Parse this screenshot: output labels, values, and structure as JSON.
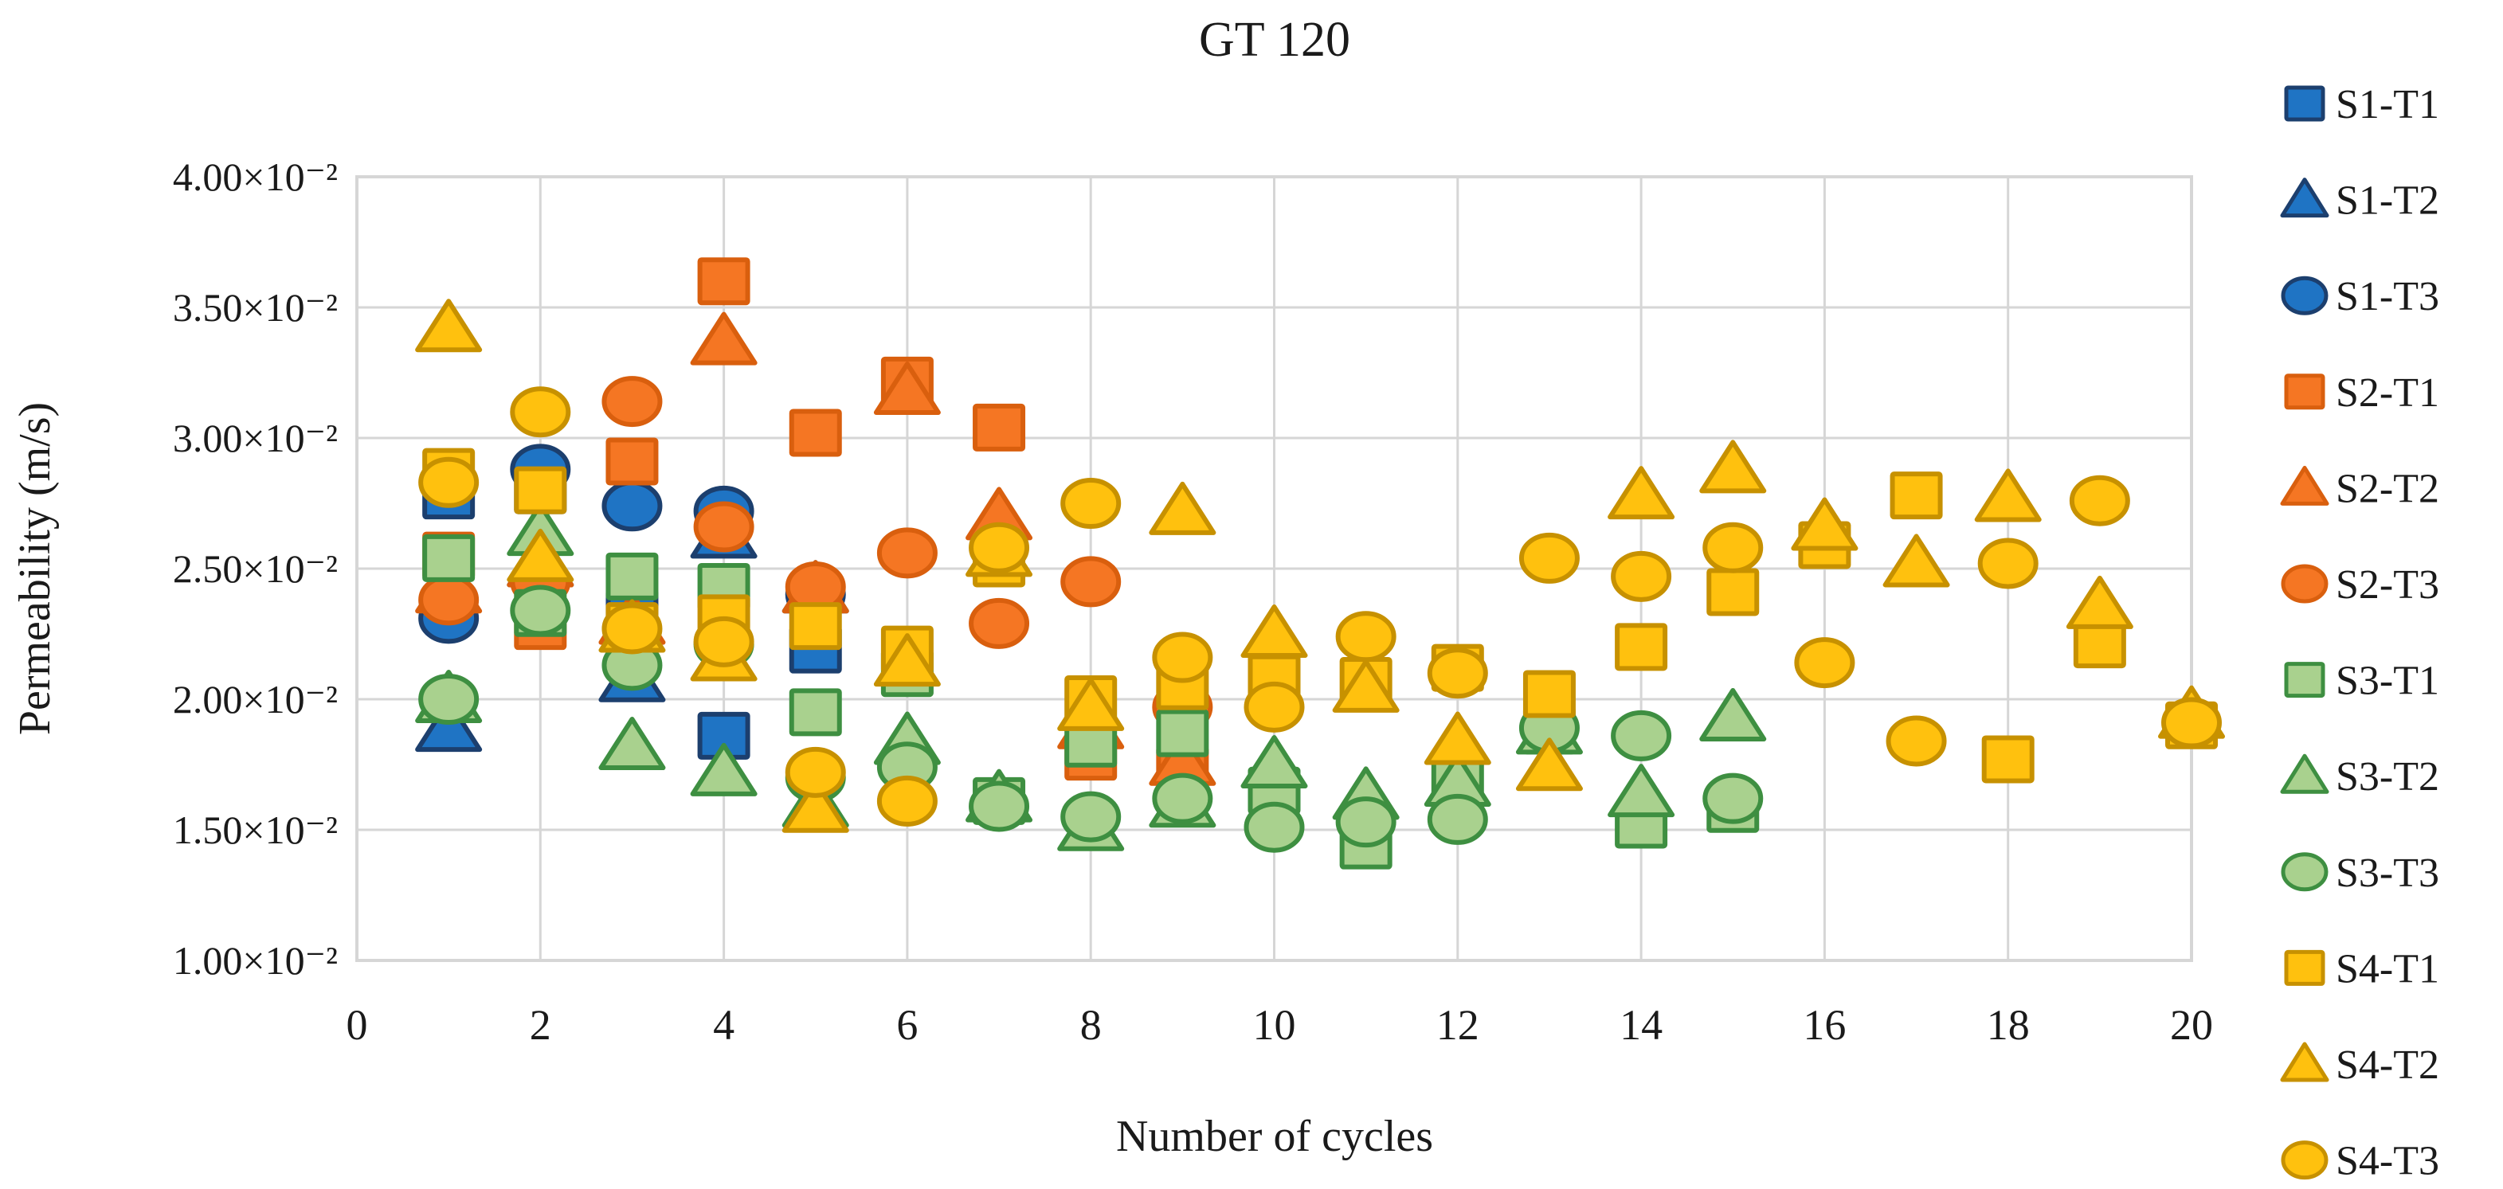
{
  "chart_data": {
    "type": "scatter",
    "title": "GT 120",
    "xlabel": "Number of cycles",
    "ylabel": "Permeability (m/s)",
    "x_ticks": [
      0,
      2,
      4,
      6,
      8,
      10,
      12,
      14,
      16,
      18,
      20
    ],
    "xlim": [
      0,
      20
    ],
    "y_scale": "1e-2",
    "y_ticks": [
      {
        "value": 1.0,
        "label": "1.00×10⁻²"
      },
      {
        "value": 1.5,
        "label": "1.50×10⁻²"
      },
      {
        "value": 2.0,
        "label": "2.00×10⁻²"
      },
      {
        "value": 2.5,
        "label": "2.50×10⁻²"
      },
      {
        "value": 3.0,
        "label": "3.00×10⁻²"
      },
      {
        "value": 3.5,
        "label": "3.50×10⁻²"
      },
      {
        "value": 4.0,
        "label": "4.00×10⁻²"
      }
    ],
    "ylim": [
      1.0,
      4.0
    ],
    "grid": true,
    "legend_position": "right",
    "colors": {
      "blue_fill": "#1F74C4",
      "blue_stroke": "#1C3F6E",
      "orange_fill": "#F57623",
      "orange_stroke": "#D95F0E",
      "green_fill": "#A9D18E",
      "green_stroke": "#3E8F41",
      "gold_fill": "#FFC10E",
      "gold_stroke": "#C79100",
      "gridline": "#D6D6D6"
    },
    "series": [
      {
        "name": "S1-T1",
        "marker": "square",
        "fill": "#1F74C4",
        "stroke": "#1C3F6E",
        "x": [
          1,
          2,
          3,
          4,
          5
        ],
        "y": [
          2.78,
          2.8,
          2.33,
          1.86,
          2.19
        ]
      },
      {
        "name": "S1-T2",
        "marker": "triangle",
        "fill": "#1F74C4",
        "stroke": "#1C3F6E",
        "x": [
          1,
          2,
          3,
          4,
          5
        ],
        "y": [
          1.89,
          2.52,
          2.08,
          2.63,
          2.42
        ]
      },
      {
        "name": "S1-T3",
        "marker": "circle",
        "fill": "#1F74C4",
        "stroke": "#1C3F6E",
        "x": [
          1,
          2,
          3,
          4,
          5
        ],
        "y": [
          2.31,
          2.88,
          2.74,
          2.72,
          2.4
        ]
      },
      {
        "name": "S2-T1",
        "marker": "square",
        "fill": "#F57623",
        "stroke": "#D95F0E",
        "x": [
          1,
          2,
          3,
          4,
          5,
          6,
          7,
          8,
          9
        ],
        "y": [
          2.55,
          2.28,
          2.91,
          3.6,
          3.02,
          3.22,
          3.04,
          1.78,
          1.73
        ]
      },
      {
        "name": "S2-T2",
        "marker": "triangle",
        "fill": "#F57623",
        "stroke": "#D95F0E",
        "x": [
          1,
          2,
          3,
          4,
          5,
          6,
          7,
          8,
          9
        ],
        "y": [
          2.42,
          2.52,
          2.3,
          3.37,
          2.42,
          3.18,
          2.7,
          1.9,
          1.76
        ]
      },
      {
        "name": "S2-T3",
        "marker": "circle",
        "fill": "#F57623",
        "stroke": "#D95F0E",
        "x": [
          1,
          2,
          3,
          4,
          5,
          6,
          7,
          8,
          9
        ],
        "y": [
          2.38,
          2.45,
          3.14,
          2.66,
          2.43,
          2.56,
          2.29,
          2.45,
          1.97
        ]
      },
      {
        "name": "S3-T1",
        "marker": "square",
        "fill": "#A9D18E",
        "stroke": "#3E8F41",
        "x": [
          1,
          2,
          3,
          4,
          5,
          6,
          7,
          8,
          9,
          10,
          11,
          12,
          13,
          14,
          15
        ],
        "y": [
          2.54,
          2.33,
          2.47,
          2.43,
          1.95,
          2.1,
          1.61,
          1.83,
          1.87,
          1.65,
          1.44,
          1.69,
          1.88,
          1.52,
          1.58
        ]
      },
      {
        "name": "S3-T2",
        "marker": "triangle",
        "fill": "#A9D18E",
        "stroke": "#3E8F41",
        "x": [
          1,
          2,
          3,
          4,
          5,
          6,
          7,
          8,
          9,
          10,
          11,
          12,
          13,
          14,
          15
        ],
        "y": [
          2.0,
          2.64,
          1.82,
          1.72,
          1.6,
          1.84,
          1.62,
          1.51,
          1.6,
          1.75,
          1.63,
          1.68,
          1.88,
          1.64,
          1.93
        ]
      },
      {
        "name": "S3-T3",
        "marker": "circle",
        "fill": "#A9D18E",
        "stroke": "#3E8F41",
        "x": [
          1,
          2,
          3,
          4,
          5,
          6,
          7,
          8,
          9,
          10,
          11,
          12,
          13,
          14,
          15
        ],
        "y": [
          2.0,
          2.34,
          2.13,
          2.21,
          1.7,
          1.74,
          1.59,
          1.55,
          1.62,
          1.51,
          1.53,
          1.54,
          1.89,
          1.86,
          1.62
        ]
      },
      {
        "name": "S4-T1",
        "marker": "square",
        "fill": "#FFC10E",
        "stroke": "#C79100",
        "x": [
          1,
          2,
          3,
          4,
          5,
          6,
          7,
          8,
          9,
          10,
          11,
          12,
          13,
          14,
          15,
          16,
          17,
          18,
          19,
          20
        ],
        "y": [
          2.87,
          2.8,
          2.28,
          2.31,
          2.28,
          2.19,
          2.52,
          2.0,
          2.05,
          2.08,
          2.07,
          2.12,
          2.02,
          2.2,
          2.41,
          2.59,
          2.78,
          1.77,
          2.21,
          1.9
        ]
      },
      {
        "name": "S4-T2",
        "marker": "triangle",
        "fill": "#FFC10E",
        "stroke": "#C79100",
        "x": [
          1,
          2,
          3,
          4,
          5,
          6,
          7,
          8,
          9,
          10,
          11,
          12,
          13,
          14,
          15,
          16,
          17,
          18,
          19,
          20
        ],
        "y": [
          3.42,
          2.54,
          2.27,
          2.16,
          1.58,
          2.14,
          2.56,
          1.97,
          2.72,
          2.25,
          2.04,
          1.84,
          1.74,
          2.78,
          2.88,
          2.66,
          2.52,
          2.77,
          2.36,
          1.94
        ]
      },
      {
        "name": "S4-T3",
        "marker": "circle",
        "fill": "#FFC10E",
        "stroke": "#C79100",
        "x": [
          1,
          2,
          3,
          4,
          5,
          6,
          7,
          8,
          9,
          10,
          11,
          12,
          13,
          14,
          15,
          16,
          17,
          18,
          19,
          20
        ],
        "y": [
          2.83,
          3.1,
          2.27,
          2.22,
          1.72,
          1.61,
          2.58,
          2.75,
          2.16,
          1.97,
          2.24,
          2.1,
          2.54,
          2.47,
          2.58,
          2.14,
          1.84,
          2.52,
          2.76,
          1.91
        ]
      }
    ],
    "legend_items": [
      "S1-T1",
      "S1-T2",
      "S1-T3",
      "S2-T1",
      "S2-T2",
      "S2-T3",
      "S3-T1",
      "S3-T2",
      "S3-T3",
      "S4-T1",
      "S4-T2",
      "S4-T3"
    ]
  }
}
